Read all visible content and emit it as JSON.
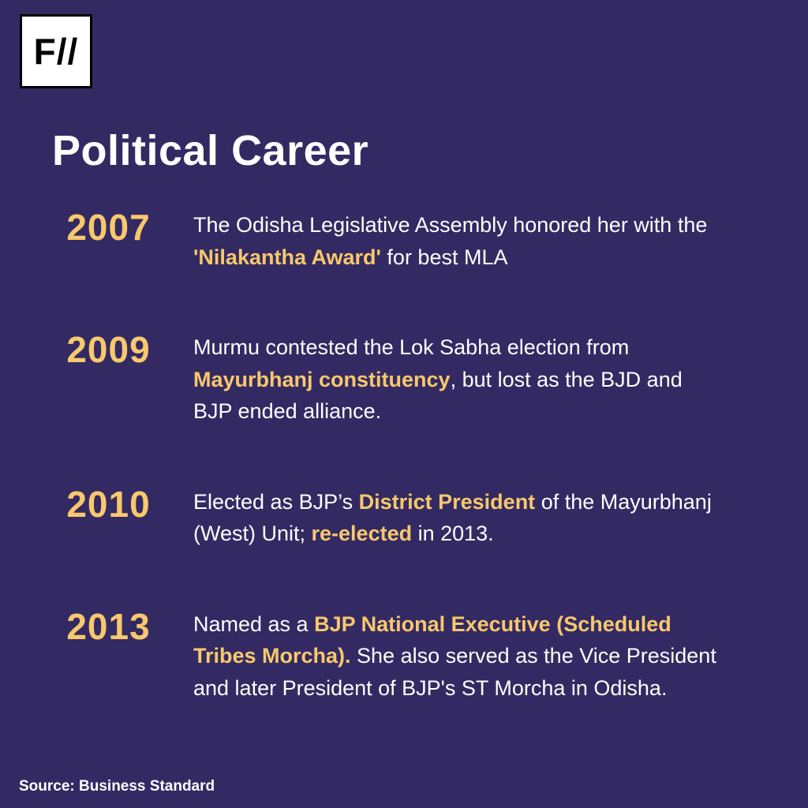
{
  "page": {
    "background_color": "#332a63",
    "accent_color": "#f8c86c",
    "text_color": "#ffffff"
  },
  "logo": {
    "text": "F//"
  },
  "header": {
    "title": "Political Career"
  },
  "timeline": {
    "entries": [
      {
        "year": "2007",
        "segments": [
          {
            "text": "The Odisha Legislative Assembly honored her with the ",
            "highlight": false
          },
          {
            "text": "'Nilakantha Award'",
            "highlight": true
          },
          {
            "text": " for best MLA",
            "highlight": false
          }
        ]
      },
      {
        "year": "2009",
        "segments": [
          {
            "text": "Murmu contested the Lok Sabha election from ",
            "highlight": false
          },
          {
            "text": "Mayurbhanj constituency",
            "highlight": true
          },
          {
            "text": ", but lost as the BJD and BJP ended alliance.",
            "highlight": false
          }
        ]
      },
      {
        "year": "2010",
        "segments": [
          {
            "text": "Elected as BJP’s ",
            "highlight": false
          },
          {
            "text": "District President",
            "highlight": true
          },
          {
            "text": " of the Mayurbhanj (West) Unit; ",
            "highlight": false
          },
          {
            "text": "re-elected",
            "highlight": true
          },
          {
            "text": " in 2013.",
            "highlight": false
          }
        ]
      },
      {
        "year": "2013",
        "segments": [
          {
            "text": "Named as a ",
            "highlight": false
          },
          {
            "text": "BJP National Executive (Scheduled Tribes Morcha).",
            "highlight": true
          },
          {
            "text": " She also served as the Vice President and later President of BJP's ST Morcha in Odisha.",
            "highlight": false
          }
        ]
      }
    ]
  },
  "footer": {
    "source": "Source: Business Standard"
  }
}
